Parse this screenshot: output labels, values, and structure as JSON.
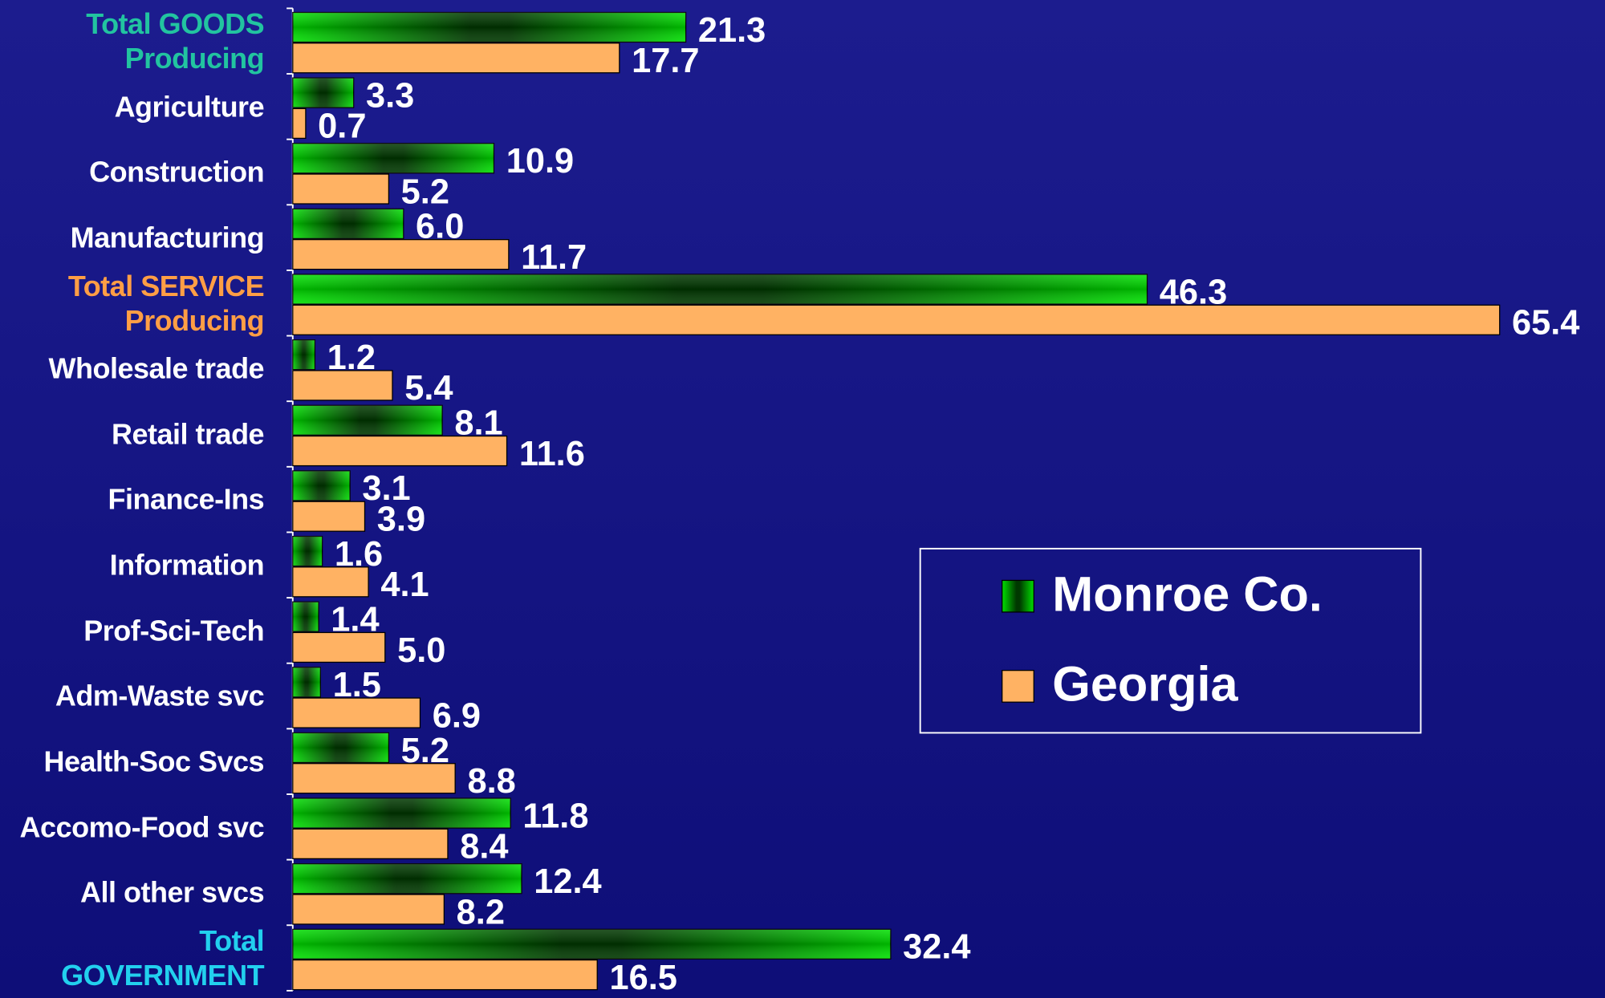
{
  "chart_data": {
    "type": "bar",
    "orientation": "horizontal",
    "categories": [
      "Total GOODS Producing",
      "Agriculture",
      "Construction",
      "Manufacturing",
      "Total SERVICE Producing",
      "Wholesale trade",
      "Retail trade",
      "Finance-Ins",
      "Information",
      "Prof-Sci-Tech",
      "Adm-Waste svc",
      "Health-Soc Svcs",
      "Accomo-Food svc",
      "All other svcs",
      "Total GOVERNMENT"
    ],
    "category_colors": [
      "#22c4a0",
      "#ffffff",
      "#ffffff",
      "#ffffff",
      "#ff9e45",
      "#ffffff",
      "#ffffff",
      "#ffffff",
      "#ffffff",
      "#ffffff",
      "#ffffff",
      "#ffffff",
      "#ffffff",
      "#ffffff",
      "#22d0ee"
    ],
    "series": [
      {
        "name": "Monroe Co.",
        "color": "#00e000",
        "values": [
          21.3,
          3.3,
          10.9,
          6.0,
          46.3,
          1.2,
          8.1,
          3.1,
          1.6,
          1.4,
          1.5,
          5.2,
          11.8,
          12.4,
          32.4
        ],
        "value_labels": [
          "21.3",
          "3.3",
          "10.9",
          "6.0",
          "46.3",
          "1.2",
          "8.1",
          "3.1",
          "1.6",
          "1.4",
          "1.5",
          "5.2",
          "11.8",
          "12.4",
          "32.4"
        ]
      },
      {
        "name": "Georgia",
        "color": "#ffb263",
        "values": [
          17.7,
          0.7,
          5.2,
          11.7,
          65.4,
          5.4,
          11.6,
          3.9,
          4.1,
          5.0,
          6.9,
          8.8,
          8.4,
          8.2,
          16.5
        ],
        "value_labels": [
          "17.7",
          "0.7",
          "5.2",
          "11.7",
          "65.4",
          "5.4",
          "11.6",
          "3.9",
          "4.1",
          "5.0",
          "6.9",
          "8.8",
          "8.4",
          "8.2",
          "16.5"
        ]
      }
    ],
    "xlim": [
      0,
      70
    ],
    "legend": "right"
  }
}
